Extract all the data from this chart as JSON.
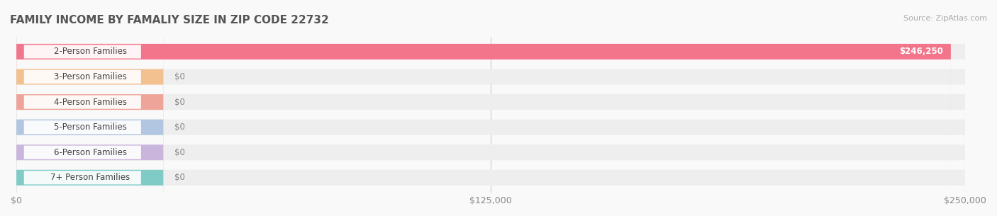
{
  "title": "FAMILY INCOME BY FAMALIY SIZE IN ZIP CODE 22732",
  "source": "Source: ZipAtlas.com",
  "categories": [
    "2-Person Families",
    "3-Person Families",
    "4-Person Families",
    "5-Person Families",
    "6-Person Families",
    "7+ Person Families"
  ],
  "values": [
    246250,
    0,
    0,
    0,
    0,
    0
  ],
  "bar_colors": [
    "#F4607A",
    "#F5B97F",
    "#F0978A",
    "#A8BFE0",
    "#C4ADDA",
    "#6DC5C0"
  ],
  "label_bg_colors": [
    "#F4607A",
    "#F5B97F",
    "#F0978A",
    "#A8BFE0",
    "#C4ADDA",
    "#6DC5C0"
  ],
  "value_labels": [
    "$246,250",
    "$0",
    "$0",
    "$0",
    "$0",
    "$0"
  ],
  "xlim": [
    0,
    250000
  ],
  "xticks": [
    0,
    125000,
    250000
  ],
  "xtick_labels": [
    "$0",
    "$125,000",
    "$250,000"
  ],
  "background_color": "#f9f9f9",
  "bar_bg_color": "#eeeeee",
  "title_fontsize": 11,
  "source_fontsize": 8
}
